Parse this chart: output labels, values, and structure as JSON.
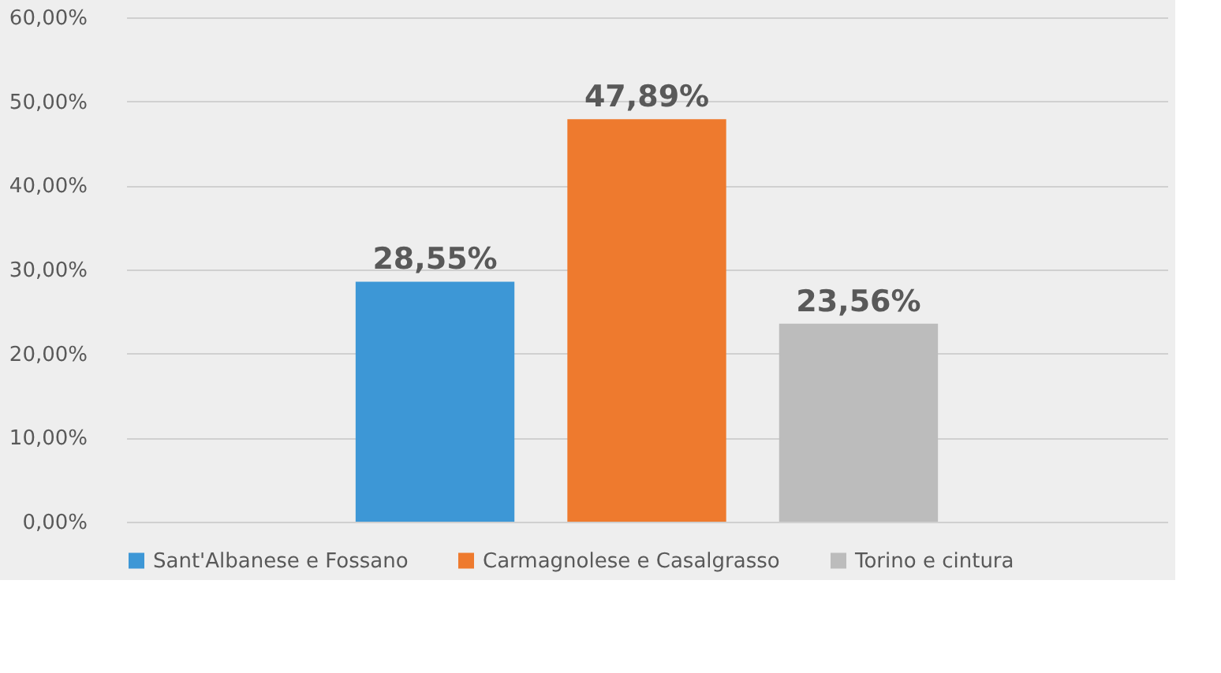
{
  "chart_data": {
    "type": "bar",
    "categories": [
      null
    ],
    "series": [
      {
        "name": "Sant'Albanese e Fossano",
        "color": "#3d97d6",
        "values": [
          28.55
        ],
        "value_labels": [
          "28,55%"
        ]
      },
      {
        "name": "Carmagnolese e Casalgrasso",
        "color": "#ee7a2e",
        "values": [
          47.89
        ],
        "value_labels": [
          "47,89%"
        ]
      },
      {
        "name": "Torino e cintura",
        "color": "#bcbcbc",
        "values": [
          23.56
        ],
        "value_labels": [
          "23,56%"
        ]
      }
    ],
    "ylim": [
      0,
      60
    ],
    "yticks": [
      {
        "value": 0,
        "label": "0,00%"
      },
      {
        "value": 10,
        "label": "10,00%"
      },
      {
        "value": 20,
        "label": "20,00%"
      },
      {
        "value": 30,
        "label": "30,00%"
      },
      {
        "value": 40,
        "label": "40,00%"
      },
      {
        "value": 50,
        "label": "50,00%"
      },
      {
        "value": 60,
        "label": "60,00%"
      }
    ],
    "grid": "y",
    "legend": "bottom"
  }
}
